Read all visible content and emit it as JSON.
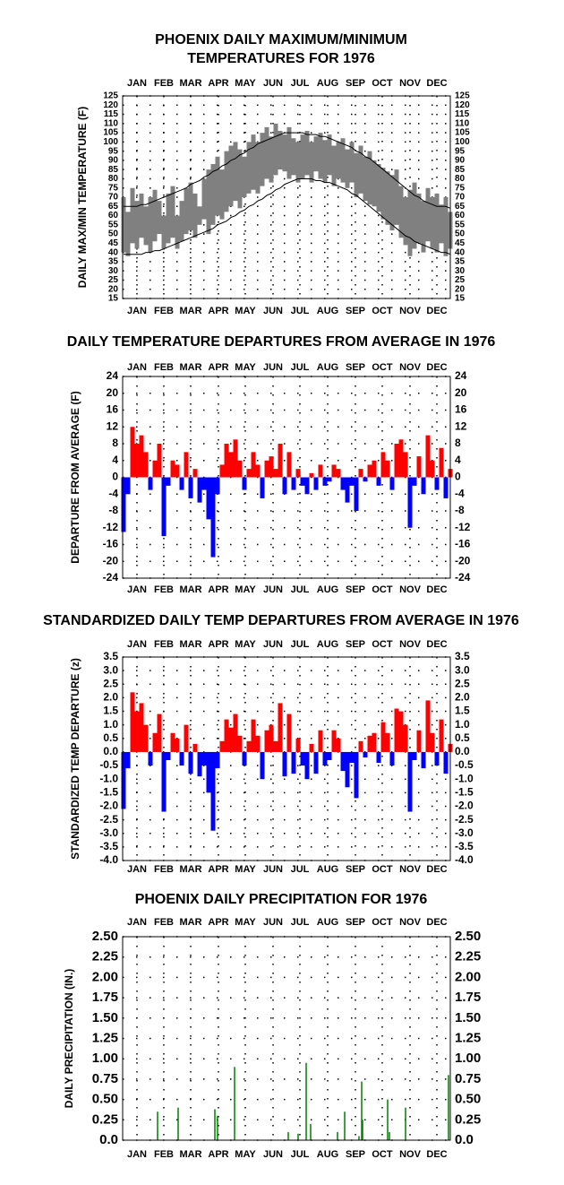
{
  "chart_data": [
    {
      "type": "range",
      "title": [
        "PHOENIX DAILY MAXIMUM/MINIMUM",
        "TEMPERATURES FOR 1976"
      ],
      "y_label": "DAILY MAX/MIN TEMPERATURE (F)",
      "x": [
        1,
        6,
        11,
        16,
        21,
        26,
        31,
        36,
        41,
        46,
        51,
        56,
        61,
        66,
        71,
        76,
        81,
        86,
        91,
        96,
        101,
        106,
        111,
        116,
        121,
        126,
        131,
        136,
        141,
        146,
        151,
        156,
        161,
        166,
        171,
        176,
        181,
        186,
        191,
        196,
        201,
        206,
        211,
        216,
        221,
        226,
        231,
        236,
        241,
        246,
        251,
        256,
        261,
        266,
        271,
        276,
        281,
        286,
        291,
        296,
        301,
        306,
        311,
        316,
        321,
        326,
        331,
        336,
        341,
        346,
        351,
        356,
        361,
        366
      ],
      "series": [
        {
          "color": "#808080",
          "values": [
            70,
            62,
            75,
            68,
            72,
            65,
            70,
            74,
            68,
            60,
            72,
            76,
            60,
            68,
            75,
            78,
            72,
            65,
            80,
            85,
            88,
            92,
            85,
            95,
            98,
            100,
            96,
            92,
            100,
            104,
            100,
            105,
            108,
            103,
            110,
            106,
            104,
            108,
            102,
            100,
            104,
            106,
            100,
            103,
            105,
            101,
            104,
            98,
            100,
            102,
            96,
            100,
            94,
            98,
            92,
            95,
            90,
            88,
            86,
            84,
            82,
            85,
            76,
            70,
            74,
            78,
            72,
            68,
            75,
            70,
            72,
            66,
            70,
            62
          ]
        },
        {
          "color": "#808080",
          "values": [
            40,
            38,
            45,
            42,
            48,
            44,
            40,
            46,
            50,
            42,
            45,
            48,
            42,
            46,
            50,
            52,
            48,
            55,
            58,
            50,
            55,
            60,
            58,
            62,
            65,
            68,
            64,
            70,
            72,
            74,
            72,
            76,
            80,
            78,
            82,
            85,
            84,
            80,
            82,
            78,
            80,
            82,
            78,
            84,
            80,
            78,
            82,
            76,
            80,
            78,
            75,
            78,
            70,
            72,
            68,
            66,
            65,
            62,
            58,
            55,
            52,
            55,
            48,
            44,
            38,
            42,
            45,
            40,
            46,
            42,
            40,
            45,
            38,
            42
          ]
        },
        {
          "color": "#000000",
          "values": [
            65,
            65,
            65,
            65,
            66,
            66,
            67,
            68,
            69,
            70,
            71,
            72,
            73,
            74,
            75,
            77,
            78,
            79,
            81,
            82,
            84,
            85,
            87,
            88,
            90,
            91,
            93,
            94,
            96,
            97,
            99,
            100,
            101,
            102,
            103,
            104,
            105,
            105,
            105,
            105,
            105,
            104,
            104,
            104,
            103,
            103,
            102,
            101,
            100,
            99,
            98,
            97,
            95,
            94,
            92,
            91,
            89,
            87,
            85,
            83,
            81,
            79,
            77,
            75,
            73,
            71,
            70,
            68,
            67,
            66,
            65,
            65,
            65,
            64
          ]
        },
        {
          "color": "#000000",
          "values": [
            39,
            39,
            39,
            39,
            39,
            40,
            40,
            41,
            41,
            42,
            43,
            44,
            45,
            46,
            47,
            48,
            49,
            50,
            51,
            52,
            53,
            55,
            56,
            57,
            59,
            60,
            62,
            63,
            65,
            66,
            68,
            69,
            71,
            72,
            74,
            75,
            77,
            78,
            79,
            80,
            80,
            80,
            80,
            79,
            79,
            78,
            78,
            77,
            76,
            75,
            74,
            72,
            71,
            69,
            67,
            65,
            63,
            61,
            59,
            57,
            55,
            53,
            51,
            49,
            48,
            46,
            45,
            44,
            43,
            42,
            41,
            40,
            40,
            39
          ]
        }
      ],
      "xlim": [
        0,
        366
      ],
      "xticks": [
        {
          "value": 16,
          "label": "JAN"
        },
        {
          "value": 46,
          "label": "FEB"
        },
        {
          "value": 76,
          "label": "MAR"
        },
        {
          "value": 107,
          "label": "APR"
        },
        {
          "value": 137,
          "label": "MAY"
        },
        {
          "value": 168,
          "label": "JUN"
        },
        {
          "value": 198,
          "label": "JUL"
        },
        {
          "value": 229,
          "label": "AUG"
        },
        {
          "value": 260,
          "label": "SEP"
        },
        {
          "value": 290,
          "label": "OCT"
        },
        {
          "value": 321,
          "label": "NOV"
        },
        {
          "value": 351,
          "label": "DEC"
        }
      ],
      "ylim": [
        15,
        125
      ],
      "yticks": [
        15,
        20,
        25,
        30,
        35,
        40,
        45,
        50,
        55,
        60,
        65,
        70,
        75,
        80,
        85,
        90,
        95,
        100,
        105,
        110,
        115,
        120,
        125
      ],
      "grid": true
    },
    {
      "type": "bar",
      "title": "DAILY TEMPERATURE DEPARTURES FROM AVERAGE IN 1976",
      "y_label": "DEPARTURE FROM AVERAGE (F)",
      "colors": {
        "positive": "#ff0000",
        "negative": "#0000ff"
      },
      "x": [
        1,
        6,
        11,
        16,
        21,
        26,
        31,
        36,
        41,
        46,
        51,
        56,
        61,
        66,
        71,
        76,
        81,
        86,
        91,
        96,
        101,
        106,
        111,
        116,
        121,
        126,
        131,
        136,
        141,
        146,
        151,
        156,
        161,
        166,
        171,
        176,
        181,
        186,
        191,
        196,
        201,
        206,
        211,
        216,
        221,
        226,
        231,
        236,
        241,
        246,
        251,
        256,
        261,
        266,
        271,
        276,
        281,
        286,
        291,
        296,
        301,
        306,
        311,
        316,
        321,
        326,
        331,
        336,
        341,
        346,
        351,
        356,
        361,
        366
      ],
      "values": [
        -13,
        -4,
        12,
        8,
        10,
        6,
        -3,
        4,
        8,
        -14,
        -2,
        4,
        3,
        -3,
        6,
        -5,
        2,
        -6,
        -3,
        -10,
        -19,
        -4,
        3,
        8,
        6,
        9,
        4,
        -3,
        2,
        6,
        3,
        -5,
        4,
        5,
        2,
        8,
        -4,
        6,
        -3,
        2,
        -2,
        -4,
        1,
        -3,
        3,
        -2,
        -1,
        3,
        2,
        -3,
        -6,
        -2,
        -8,
        2,
        -1,
        3,
        4,
        -2,
        6,
        4,
        -3,
        8,
        9,
        6,
        -12,
        -2,
        5,
        -4,
        10,
        4,
        -3,
        7,
        -5,
        2
      ],
      "xlim": [
        0,
        366
      ],
      "xticks": [
        {
          "value": 16,
          "label": "JAN"
        },
        {
          "value": 46,
          "label": "FEB"
        },
        {
          "value": 76,
          "label": "MAR"
        },
        {
          "value": 107,
          "label": "APR"
        },
        {
          "value": 137,
          "label": "MAY"
        },
        {
          "value": 168,
          "label": "JUN"
        },
        {
          "value": 198,
          "label": "JUL"
        },
        {
          "value": 229,
          "label": "AUG"
        },
        {
          "value": 260,
          "label": "SEP"
        },
        {
          "value": 290,
          "label": "OCT"
        },
        {
          "value": 321,
          "label": "NOV"
        },
        {
          "value": 351,
          "label": "DEC"
        }
      ],
      "ylim": [
        -24,
        24
      ],
      "yticks": [
        -24,
        -20,
        -16,
        -12,
        -8,
        -4,
        0,
        4,
        8,
        12,
        16,
        20,
        24
      ],
      "grid": true
    },
    {
      "type": "bar",
      "title": "STANDARDIZED DAILY TEMP DEPARTURES FROM AVERAGE IN 1976",
      "y_label": "STANDARDIZED TEMP DEPARTURE (z)",
      "colors": {
        "positive": "#ff0000",
        "negative": "#0000ff"
      },
      "x": [
        1,
        6,
        11,
        16,
        21,
        26,
        31,
        36,
        41,
        46,
        51,
        56,
        61,
        66,
        71,
        76,
        81,
        86,
        91,
        96,
        101,
        106,
        111,
        116,
        121,
        126,
        131,
        136,
        141,
        146,
        151,
        156,
        161,
        166,
        171,
        176,
        181,
        186,
        191,
        196,
        201,
        206,
        211,
        216,
        221,
        226,
        231,
        236,
        241,
        246,
        251,
        256,
        261,
        266,
        271,
        276,
        281,
        286,
        291,
        296,
        301,
        306,
        311,
        316,
        321,
        326,
        331,
        336,
        341,
        346,
        351,
        356,
        361,
        366
      ],
      "values": [
        -2.1,
        -0.6,
        2.2,
        1.5,
        1.8,
        1.0,
        -0.5,
        0.7,
        1.4,
        -2.2,
        -0.3,
        0.7,
        0.5,
        -0.5,
        1.0,
        -0.8,
        0.3,
        -0.9,
        -0.5,
        -1.5,
        -2.9,
        -0.6,
        0.4,
        1.2,
        0.9,
        1.4,
        0.6,
        -0.5,
        0.4,
        1.2,
        0.6,
        -1.0,
        0.8,
        1.0,
        0.4,
        1.8,
        -0.9,
        1.4,
        -0.8,
        0.5,
        -0.5,
        -1.0,
        0.3,
        -0.8,
        0.8,
        -0.5,
        -0.3,
        0.8,
        0.5,
        -0.7,
        -1.3,
        -0.4,
        -1.7,
        0.4,
        -0.2,
        0.6,
        0.7,
        -0.4,
        1.1,
        0.7,
        -0.5,
        1.6,
        1.5,
        1.0,
        -2.2,
        -0.3,
        0.8,
        -0.6,
        1.9,
        0.7,
        -0.5,
        1.2,
        -0.8,
        0.3
      ],
      "xlim": [
        0,
        366
      ],
      "xticks": [
        {
          "value": 16,
          "label": "JAN"
        },
        {
          "value": 46,
          "label": "FEB"
        },
        {
          "value": 76,
          "label": "MAR"
        },
        {
          "value": 107,
          "label": "APR"
        },
        {
          "value": 137,
          "label": "MAY"
        },
        {
          "value": 168,
          "label": "JUN"
        },
        {
          "value": 198,
          "label": "JUL"
        },
        {
          "value": 229,
          "label": "AUG"
        },
        {
          "value": 260,
          "label": "SEP"
        },
        {
          "value": 290,
          "label": "OCT"
        },
        {
          "value": 321,
          "label": "NOV"
        },
        {
          "value": 351,
          "label": "DEC"
        }
      ],
      "ylim": [
        -4,
        3.5
      ],
      "yticks": [
        {
          "value": -4,
          "label": "-4.0"
        },
        -3.5,
        {
          "value": -3,
          "label": "-3.0"
        },
        -2.5,
        {
          "value": -2,
          "label": "-2.0"
        },
        -1.5,
        {
          "value": -1,
          "label": "-1.0"
        },
        -0.5,
        {
          "value": 0,
          "label": "0.0"
        },
        0.5,
        {
          "value": 1,
          "label": "1.0"
        },
        1.5,
        {
          "value": 2,
          "label": "2.0"
        },
        2.5,
        {
          "value": 3,
          "label": "3.0"
        },
        3.5
      ],
      "grid": true
    },
    {
      "type": "bar",
      "title": "PHOENIX DAILY PRECIPITATION FOR 1976",
      "y_label": "DAILY PRECIPITATION (IN.)",
      "colors": {
        "positive": "#008000",
        "negative": "#008000"
      },
      "x": [
        39,
        62,
        103,
        106,
        125,
        185,
        196,
        205,
        210,
        240,
        248,
        264,
        267,
        268,
        296,
        298,
        316,
        364
      ],
      "values": [
        0.35,
        0.4,
        0.38,
        0.3,
        0.9,
        0.1,
        0.08,
        0.95,
        0.2,
        0.1,
        0.35,
        0.05,
        0.72,
        0.25,
        0.5,
        0.1,
        0.4,
        0.8
      ],
      "xlim": [
        0,
        366
      ],
      "xticks": [
        {
          "value": 16,
          "label": "JAN"
        },
        {
          "value": 46,
          "label": "FEB"
        },
        {
          "value": 76,
          "label": "MAR"
        },
        {
          "value": 107,
          "label": "APR"
        },
        {
          "value": 137,
          "label": "MAY"
        },
        {
          "value": 168,
          "label": "JUN"
        },
        {
          "value": 198,
          "label": "JUL"
        },
        {
          "value": 229,
          "label": "AUG"
        },
        {
          "value": 260,
          "label": "SEP"
        },
        {
          "value": 290,
          "label": "OCT"
        },
        {
          "value": 321,
          "label": "NOV"
        },
        {
          "value": 351,
          "label": "DEC"
        }
      ],
      "ylim": [
        0,
        2.5
      ],
      "yticks": [
        {
          "value": 0,
          "label": "0.0"
        },
        0.25,
        {
          "value": 0.5,
          "label": "0.50"
        },
        0.75,
        {
          "value": 1,
          "label": "1.00"
        },
        1.25,
        {
          "value": 1.5,
          "label": "1.50"
        },
        1.75,
        {
          "value": 2,
          "label": "2.00"
        },
        2.25,
        {
          "value": 2.5,
          "label": "2.50"
        }
      ],
      "grid": true
    }
  ]
}
